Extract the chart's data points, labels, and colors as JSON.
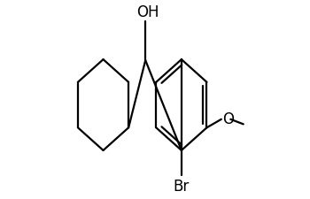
{
  "background": "#ffffff",
  "line_color": "#000000",
  "line_width": 1.6,
  "figure_size": [
    3.5,
    2.25
  ],
  "dpi": 100,
  "OH_text": "OH",
  "OH_fontsize": 12,
  "Br_text": "Br",
  "Br_fontsize": 12,
  "O_text": "O",
  "O_fontsize": 12
}
